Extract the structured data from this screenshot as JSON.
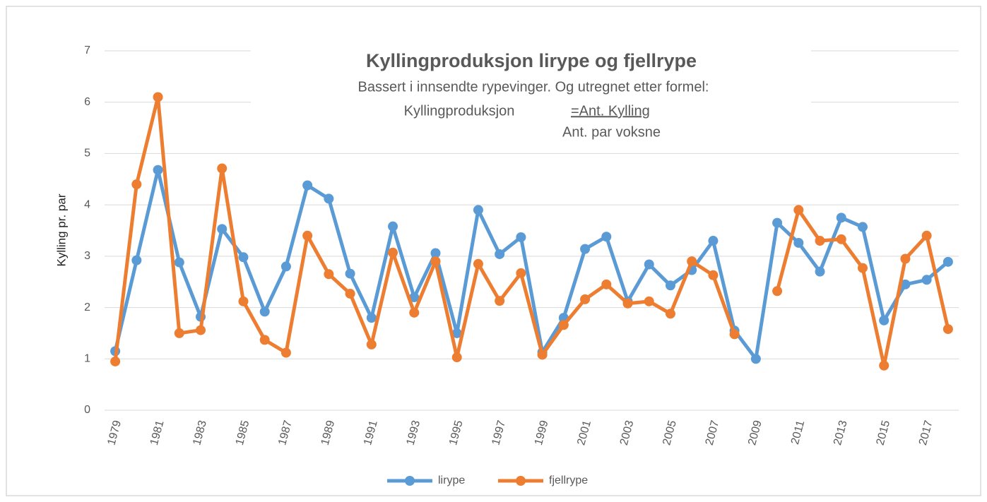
{
  "chart_data": {
    "type": "line",
    "title": "Kyllingproduksjon lirype og fjellrype",
    "subtitle": "Bassert i innsendte rypevinger. Og utregnet etter formel:",
    "formula_label": "Kyllingproduksjon",
    "formula_numerator": "=Ant. Kylling",
    "formula_denominator": "Ant. par voksne",
    "y_label": "Kylling pr. par",
    "categories": [
      "1979",
      null,
      "1981",
      null,
      "1983",
      null,
      "1985",
      null,
      "1987",
      null,
      "1989",
      null,
      "1991",
      null,
      "1993",
      null,
      "1995",
      null,
      "1997",
      null,
      "1999",
      null,
      "2001",
      null,
      "2003",
      null,
      "2005",
      null,
      "2007",
      null,
      "2009",
      null,
      "2011",
      null,
      "2013",
      null,
      "2015",
      null,
      "2017",
      null
    ],
    "series": [
      {
        "name": "lirype",
        "color": "#5b9bd5",
        "values": [
          1.15,
          2.92,
          4.68,
          2.88,
          1.82,
          3.53,
          2.98,
          1.92,
          2.8,
          4.38,
          4.12,
          2.66,
          1.8,
          3.58,
          2.2,
          3.06,
          1.5,
          3.9,
          3.04,
          3.37,
          1.13,
          1.8,
          3.14,
          3.38,
          2.12,
          2.84,
          2.43,
          2.73,
          3.3,
          1.55,
          1.0,
          3.65,
          3.26,
          2.7,
          3.75,
          3.57,
          1.75,
          2.45,
          2.54,
          2.89
        ]
      },
      {
        "name": "fjellrype",
        "color": "#ed7d31",
        "values": [
          0.95,
          4.4,
          6.1,
          1.5,
          1.56,
          4.71,
          2.12,
          1.37,
          1.12,
          3.4,
          2.65,
          2.27,
          1.28,
          3.07,
          1.9,
          2.9,
          1.03,
          2.85,
          2.13,
          2.67,
          1.08,
          1.66,
          2.16,
          2.45,
          2.08,
          2.12,
          1.88,
          2.9,
          2.63,
          1.48,
          null,
          2.32,
          3.9,
          3.3,
          3.33,
          2.77,
          0.87,
          2.95,
          3.4,
          1.58
        ]
      }
    ],
    "ylim": [
      0,
      7
    ],
    "yticks": [
      0,
      1,
      2,
      3,
      4,
      5,
      6,
      7
    ],
    "grid": true,
    "legend": "bottom"
  }
}
